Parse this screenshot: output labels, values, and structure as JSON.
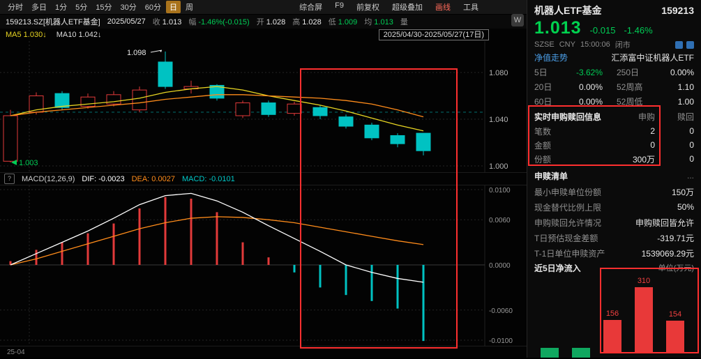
{
  "colors": {
    "up": "#e23a3a",
    "down": "#00c2c2",
    "green_text": "#00cc55",
    "ma5": "#e8d522",
    "ma10": "#ff8c1a",
    "dif": "#ffffff",
    "dea": "#ff8c1a",
    "flow_red": "#e83939",
    "flow_green": "#10a860",
    "highlight": "#fe2f2f"
  },
  "toolbar": {
    "periods": [
      "分时",
      "多日",
      "1分",
      "5分",
      "15分",
      "30分",
      "60分",
      "日",
      "周"
    ],
    "active_period": "日",
    "tools": [
      "综合屏",
      "F9",
      "前复权",
      "超级叠加",
      "画线",
      "工具"
    ],
    "badge": "W"
  },
  "info_bar": {
    "symbol": "159213.SZ[机器人ETF基金]",
    "date": "2025/05/27",
    "fields": [
      {
        "label": "收",
        "value": "1.013"
      },
      {
        "label": "幅",
        "value": "-1.46%(-0.015)"
      },
      {
        "label": "开",
        "value": "1.028"
      },
      {
        "label": "高",
        "value": "1.028"
      },
      {
        "label": "低",
        "value": "1.009"
      },
      {
        "label": "均",
        "value": "1.013"
      },
      {
        "label": "量",
        "value": ""
      }
    ]
  },
  "ma_bar": {
    "ma5": "MA5 1.030↓",
    "ma10": "MA10 1.042↓",
    "range": "2025/04/30-2025/05/27(17日)"
  },
  "macd_bar": {
    "help": "?",
    "name": "MACD(12,26,9)",
    "dif": "DIF: -0.0023",
    "dea": "DEA: 0.0027",
    "macd": "MACD: -0.0101"
  },
  "x_axis_label": "25-04",
  "chart_data": [
    {
      "type": "candlestick",
      "title": "机器人ETF基金 159213.SZ 日K",
      "date_range": "2025/04/30-2025/05/27(17日)",
      "y_ticks": [
        "1.080",
        "1.040",
        "1.000"
      ],
      "ylim": [
        0.998,
        1.105
      ],
      "reference_line": 1.046,
      "annotations": [
        {
          "text": "1.098",
          "type": "period-high"
        },
        {
          "text": "1.003",
          "type": "period-low"
        }
      ],
      "ohlc": [
        [
          1.004,
          1.043,
          1.048,
          1.003
        ],
        [
          1.046,
          1.06,
          1.063,
          1.044
        ],
        [
          1.062,
          1.05,
          1.064,
          1.048
        ],
        [
          1.051,
          1.059,
          1.062,
          1.049
        ],
        [
          1.053,
          1.061,
          1.064,
          1.051
        ],
        [
          1.048,
          1.065,
          1.068,
          1.046
        ],
        [
          1.089,
          1.068,
          1.098,
          1.066
        ],
        [
          1.066,
          1.068,
          1.073,
          1.062
        ],
        [
          1.069,
          1.058,
          1.07,
          1.056
        ],
        [
          1.043,
          1.054,
          1.056,
          1.041
        ],
        [
          1.054,
          1.044,
          1.056,
          1.042
        ],
        [
          1.045,
          1.053,
          1.055,
          1.043
        ],
        [
          1.05,
          1.043,
          1.052,
          1.04
        ],
        [
          1.042,
          1.034,
          1.044,
          1.032
        ],
        [
          1.035,
          1.024,
          1.037,
          1.022
        ],
        [
          1.026,
          1.019,
          1.028,
          1.016
        ],
        [
          1.028,
          1.013,
          1.028,
          1.009
        ]
      ],
      "ma5": [
        1.043,
        1.048,
        1.051,
        1.053,
        1.055,
        1.058,
        1.063,
        1.066,
        1.068,
        1.065,
        1.06,
        1.056,
        1.052,
        1.047,
        1.041,
        1.035,
        1.03
      ],
      "ma10": [
        1.043,
        1.046,
        1.048,
        1.05,
        1.052,
        1.054,
        1.057,
        1.059,
        1.061,
        1.061,
        1.06,
        1.059,
        1.058,
        1.056,
        1.053,
        1.048,
        1.042
      ]
    },
    {
      "type": "bar",
      "title": "MACD(12,26,9)",
      "y_ticks": [
        "0.0100",
        "0.0060",
        "0.0000",
        "-0.0060",
        "-0.0100"
      ],
      "ylim": [
        -0.0105,
        0.0105
      ],
      "histogram": [
        0.0005,
        0.002,
        0.003,
        0.0042,
        0.0055,
        0.0075,
        0.009,
        0.0088,
        0.007,
        0.003,
        0.001,
        -0.001,
        -0.003,
        -0.004,
        -0.0048,
        -0.0058,
        -0.0101
      ],
      "dif": [
        0.0,
        0.0015,
        0.003,
        0.0045,
        0.0062,
        0.008,
        0.0092,
        0.0095,
        0.0085,
        0.007,
        0.0052,
        0.0035,
        0.0018,
        0.0,
        -0.001,
        -0.0018,
        -0.0023
      ],
      "dea": [
        0.0,
        0.0008,
        0.0018,
        0.0028,
        0.0038,
        0.0048,
        0.0056,
        0.0062,
        0.0064,
        0.0063,
        0.006,
        0.0056,
        0.005,
        0.0044,
        0.0038,
        0.0032,
        0.0027
      ]
    },
    {
      "type": "bar",
      "title": "近5日净流入",
      "unit": "单位(万元)",
      "values": [
        null,
        null,
        156,
        310,
        154
      ],
      "directions": [
        "down",
        "down",
        "up",
        "up",
        "up"
      ],
      "bar_labels": [
        "",
        "",
        "156",
        "310",
        "154"
      ]
    }
  ],
  "quote_panel": {
    "name": "机器人ETF基金",
    "code": "159213",
    "price": "1.013",
    "change": "-0.015",
    "change_pct": "-1.46%",
    "exchange": "SZSE",
    "currency": "CNY",
    "time": "15:00:06",
    "status": "闭市",
    "nav_label": "净值走势",
    "fund_name": "汇添富中证机器人ETF",
    "stats": [
      {
        "l1": "5日",
        "v1": "-3.62%",
        "l2": "250日",
        "v2": "0.00%"
      },
      {
        "l1": "20日",
        "v1": "0.00%",
        "l2": "52周高",
        "v2": "1.10"
      },
      {
        "l1": "60日",
        "v1": "0.00%",
        "l2": "52周低",
        "v2": "1.00"
      }
    ],
    "subscription": {
      "title": "实时申购赎回信息",
      "col_buy": "申购",
      "col_sell": "赎回",
      "rows": [
        {
          "label": "笔数",
          "buy": "2",
          "sell": "0"
        },
        {
          "label": "金额",
          "buy": "0",
          "sell": "0"
        },
        {
          "label": "份额",
          "buy": "300万",
          "sell": "0"
        }
      ]
    },
    "list_section": {
      "title": "申赎清单",
      "more": "...",
      "rows": [
        {
          "label": "最小申赎单位份额",
          "value": "150万"
        },
        {
          "label": "现金替代比例上限",
          "value": "50%"
        },
        {
          "label": "申购赎回允许情况",
          "value": "申购赎回皆允许"
        },
        {
          "label": "T日预估现金差额",
          "value": "-319.71元"
        },
        {
          "label": "T-1日单位申赎资产",
          "value": "1539069.29元"
        }
      ]
    },
    "flow_section": {
      "title": "近5日净流入",
      "unit": "单位(万元)"
    }
  }
}
